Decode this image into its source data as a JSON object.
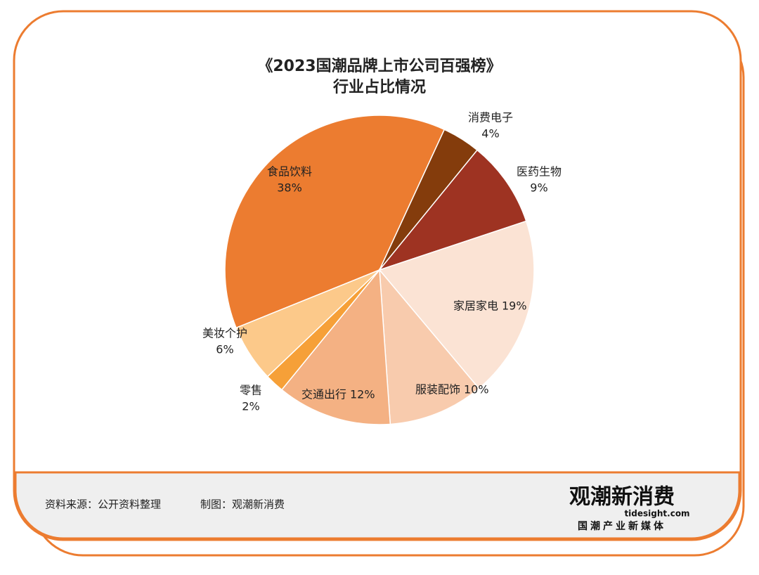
{
  "chart_data": {
    "type": "pie",
    "title": "《2023国潮品牌上市公司百强榜》",
    "subtitle": "行业占比情况",
    "categories": [
      "食品饮料",
      "消费电子",
      "医药生物",
      "家居家电",
      "服装配饰",
      "交通出行",
      "零售",
      "美妆个护"
    ],
    "values": [
      38,
      4,
      9,
      19,
      10,
      12,
      2,
      6
    ],
    "value_labels": [
      "38%",
      "4%",
      "9%",
      "19%",
      "10%",
      "12%",
      "2%",
      "6%"
    ],
    "colors": [
      "#ec7c30",
      "#843c0c",
      "#9e3322",
      "#fbe3d4",
      "#f8cbad",
      "#f4b183",
      "#f6a038",
      "#fcc98a"
    ]
  },
  "footer": {
    "source": "资料来源：公开资料整理",
    "maker": "制图：观潮新消费"
  },
  "logo": {
    "name": "观潮新消费",
    "site": "tidesight.com",
    "tagline": "国潮产业新媒体"
  }
}
